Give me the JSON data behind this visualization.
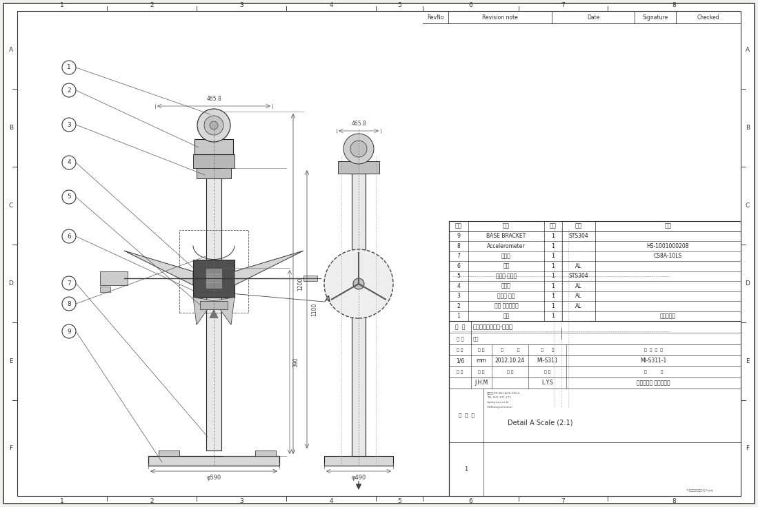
{
  "bg_color": "#f0f0ec",
  "paper_color": "#ffffff",
  "line_color": "#222222",
  "revision_header": [
    "RevNo",
    "Revision note",
    "Date",
    "Signature",
    "Checked"
  ],
  "bom_rows": [
    [
      "9",
      "BASE BRACKET",
      "1",
      "STS304",
      ""
    ],
    [
      "8",
      "Accelerometer",
      "1",
      "",
      "HS-1001000208"
    ],
    [
      "7",
      "로드셀",
      "1",
      "",
      "CS8A-10LS"
    ],
    [
      "6",
      "모형",
      "1",
      "AL",
      ""
    ],
    [
      "5",
      "로드셀 브라켓",
      "1",
      "STS304",
      ""
    ],
    [
      "4",
      "파이프",
      "1",
      "AL",
      ""
    ],
    [
      "3",
      "파이프 닫제",
      "1",
      "AL",
      ""
    ],
    [
      "2",
      "모터 고정브라켓",
      "1",
      "AL",
      ""
    ],
    [
      "1",
      "모터",
      "1",
      "",
      "상업감속기"
    ]
  ],
  "bom_header": [
    "품번",
    "품명",
    "수량",
    "재질",
    "비고"
  ],
  "drawing_title": "조류수자시험장치-조립도",
  "drawing_subtitle": "새라",
  "scale": "1/6",
  "unit": "mm",
  "date": "2012.10.24",
  "drawn_by": "MI-S311",
  "doc_no": "MI-S311-1",
  "draw_label": "J.H.M",
  "check_label": "L.Y.S",
  "company": "인하대학교 조선공학과",
  "dim_top_width": "465.8",
  "dim_height1": "1200",
  "dim_height2": "1100",
  "dim_bottom_width1": "φ590",
  "dim_bottom_width2": "φ490",
  "dim_height3": "390",
  "border_cols": [
    "1",
    "2",
    "3",
    "4",
    "5",
    "6",
    "7",
    "8"
  ],
  "border_rows": [
    "A",
    "B",
    "C",
    "D",
    "E",
    "F"
  ]
}
